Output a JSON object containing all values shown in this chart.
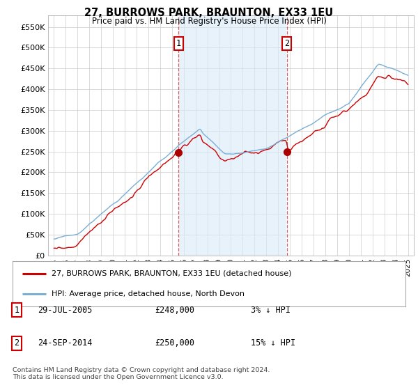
{
  "title": "27, BURROWS PARK, BRAUNTON, EX33 1EU",
  "subtitle": "Price paid vs. HM Land Registry's House Price Index (HPI)",
  "ylim": [
    0,
    577000
  ],
  "yticks": [
    0,
    50000,
    100000,
    150000,
    200000,
    250000,
    300000,
    350000,
    400000,
    450000,
    500000,
    550000
  ],
  "ytick_labels": [
    "£0",
    "£50K",
    "£100K",
    "£150K",
    "£200K",
    "£250K",
    "£300K",
    "£350K",
    "£400K",
    "£450K",
    "£500K",
    "£550K"
  ],
  "xlim_left": 1994.5,
  "xlim_right": 2025.5,
  "sale1_year": 2005.57,
  "sale1_price": 248000,
  "sale1_label": "1",
  "sale1_date": "29-JUL-2005",
  "sale1_amount": "£248,000",
  "sale1_pct": "3%",
  "sale2_year": 2014.73,
  "sale2_price": 250000,
  "sale2_label": "2",
  "sale2_date": "24-SEP-2014",
  "sale2_amount": "£250,000",
  "sale2_pct": "15%",
  "hpi_color": "#7aaed4",
  "property_color": "#cc0000",
  "shade_color": "#d8eaf8",
  "marker_color": "#aa0000",
  "legend_label_property": "27, BURROWS PARK, BRAUNTON, EX33 1EU (detached house)",
  "legend_label_hpi": "HPI: Average price, detached house, North Devon",
  "footer": "Contains HM Land Registry data © Crown copyright and database right 2024.\nThis data is licensed under the Open Government Licence v3.0.",
  "background_color": "#ffffff",
  "plot_bg": "#ffffff"
}
